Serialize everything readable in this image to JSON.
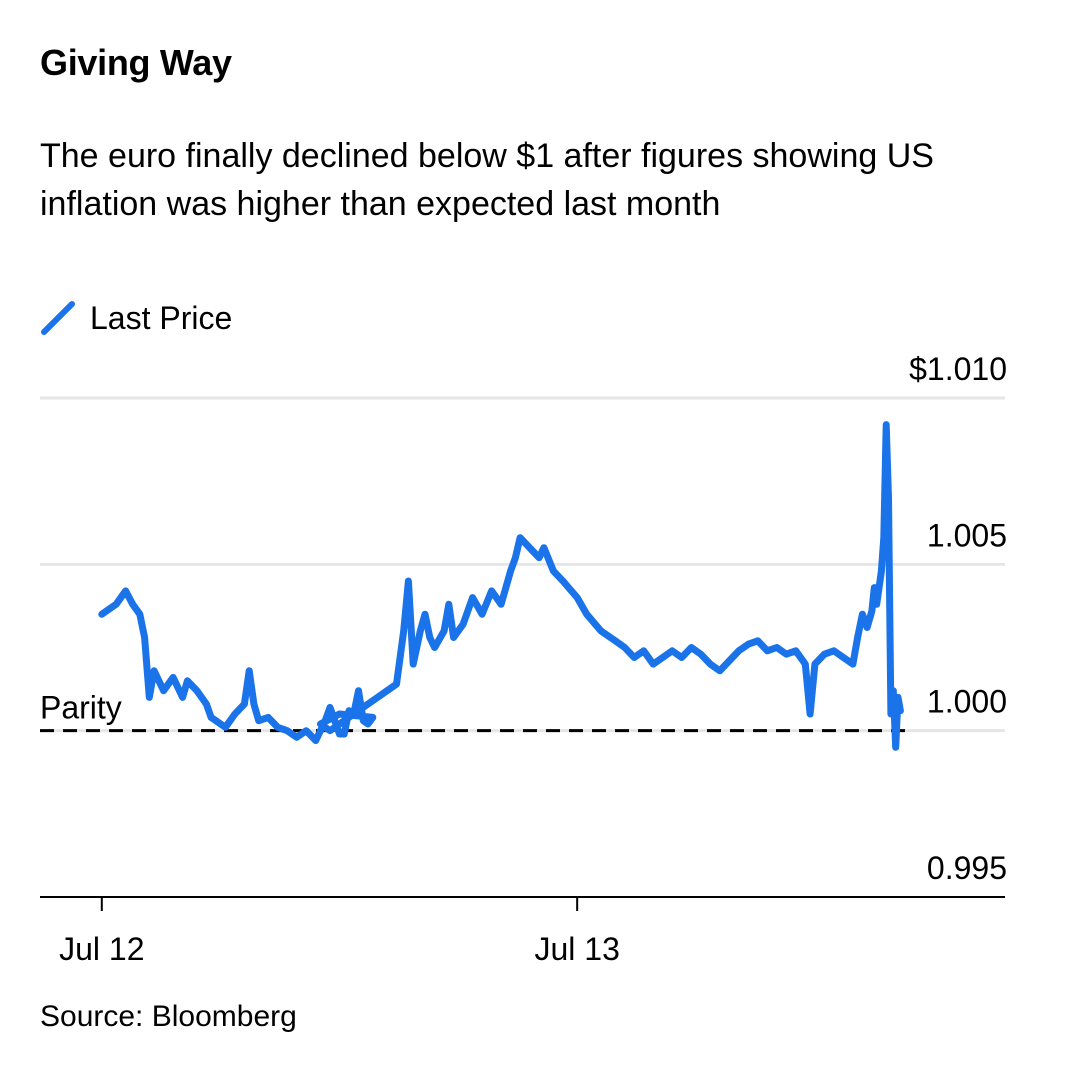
{
  "title": "Giving Way",
  "subtitle": "The euro finally declined below $1 after figures showing US inflation was higher than expected last month",
  "source": "Source: Bloomberg",
  "colors": {
    "series": "#1a73e8",
    "grid": "#e6e6e6",
    "axis": "#000000",
    "reference": "#000000"
  },
  "chart_data": {
    "type": "line",
    "title": "Giving Way",
    "xlabel": "",
    "ylabel": "",
    "legend": [
      "Last Price"
    ],
    "x_ticks": [
      {
        "label": "Jul 12",
        "t": 0.0
      },
      {
        "label": "Jul 13",
        "t": 1.0
      }
    ],
    "xlim": [
      -0.13,
      1.9
    ],
    "ylim": [
      0.995,
      1.01
    ],
    "y_ticks": [
      {
        "value": 1.01,
        "label": "$1.010"
      },
      {
        "value": 1.005,
        "label": "1.005"
      },
      {
        "value": 1.0,
        "label": "1.000"
      },
      {
        "value": 0.995,
        "label": "0.995"
      }
    ],
    "reference_line": {
      "value": 1.0,
      "label": "Parity",
      "style": "dashed"
    },
    "series": [
      {
        "name": "Last Price",
        "points": [
          [
            0.0,
            1.0035
          ],
          [
            0.03,
            1.0038
          ],
          [
            0.05,
            1.0042
          ],
          [
            0.065,
            1.0038
          ],
          [
            0.08,
            1.0035
          ],
          [
            0.09,
            1.0028
          ],
          [
            0.1,
            1.001
          ],
          [
            0.11,
            1.0018
          ],
          [
            0.13,
            1.0012
          ],
          [
            0.15,
            1.0016
          ],
          [
            0.17,
            1.001
          ],
          [
            0.18,
            1.0015
          ],
          [
            0.2,
            1.0012
          ],
          [
            0.22,
            1.0008
          ],
          [
            0.23,
            1.0004
          ],
          [
            0.25,
            1.0002
          ],
          [
            0.26,
            1.0001
          ],
          [
            0.28,
            1.0005
          ],
          [
            0.3,
            1.0008
          ],
          [
            0.31,
            1.0018
          ],
          [
            0.32,
            1.0008
          ],
          [
            0.33,
            1.0003
          ],
          [
            0.35,
            1.0004
          ],
          [
            0.37,
            1.0001
          ],
          [
            0.39,
            1.0
          ],
          [
            0.41,
            0.9998
          ],
          [
            0.43,
            1.0
          ],
          [
            0.45,
            0.9997
          ],
          [
            0.47,
            1.0003
          ],
          [
            0.48,
            1.0007
          ],
          [
            0.49,
            1.0003
          ],
          [
            0.5,
            0.9999
          ],
          [
            0.51,
            0.9999
          ],
          [
            0.52,
            1.0006
          ],
          [
            0.53,
            1.0005
          ],
          [
            0.54,
            1.0012
          ],
          [
            0.55,
            1.0003
          ],
          [
            0.56,
            1.0002
          ],
          [
            0.57,
            1.0004
          ],
          [
            0.5,
            1.0005
          ],
          [
            0.46,
            1.0002
          ],
          [
            0.48,
            1.0
          ],
          [
            0.5,
            1.0002
          ],
          [
            0.62,
            1.0014
          ],
          [
            0.635,
            1.003
          ],
          [
            0.645,
            1.0045
          ],
          [
            0.655,
            1.002
          ],
          [
            0.67,
            1.003
          ],
          [
            0.68,
            1.0035
          ],
          [
            0.69,
            1.0028
          ],
          [
            0.7,
            1.0025
          ],
          [
            0.72,
            1.003
          ],
          [
            0.73,
            1.0038
          ],
          [
            0.74,
            1.0028
          ],
          [
            0.76,
            1.0032
          ],
          [
            0.78,
            1.004
          ],
          [
            0.8,
            1.0035
          ],
          [
            0.82,
            1.0042
          ],
          [
            0.84,
            1.0038
          ],
          [
            0.86,
            1.0048
          ],
          [
            0.87,
            1.0052
          ],
          [
            0.88,
            1.0058
          ],
          [
            0.9,
            1.0055
          ],
          [
            0.92,
            1.0052
          ],
          [
            0.93,
            1.0055
          ],
          [
            0.95,
            1.0048
          ],
          [
            0.97,
            1.0045
          ],
          [
            1.0,
            1.004
          ],
          [
            1.02,
            1.0035
          ],
          [
            1.05,
            1.003
          ],
          [
            1.08,
            1.0027
          ],
          [
            1.1,
            1.0025
          ],
          [
            1.12,
            1.0022
          ],
          [
            1.14,
            1.0024
          ],
          [
            1.16,
            1.002
          ],
          [
            1.18,
            1.0022
          ],
          [
            1.2,
            1.0024
          ],
          [
            1.22,
            1.0022
          ],
          [
            1.24,
            1.0025
          ],
          [
            1.26,
            1.0023
          ],
          [
            1.28,
            1.002
          ],
          [
            1.3,
            1.0018
          ],
          [
            1.32,
            1.0021
          ],
          [
            1.34,
            1.0024
          ],
          [
            1.36,
            1.0026
          ],
          [
            1.38,
            1.0027
          ],
          [
            1.4,
            1.0024
          ],
          [
            1.42,
            1.0025
          ],
          [
            1.44,
            1.0023
          ],
          [
            1.46,
            1.0024
          ],
          [
            1.48,
            1.002
          ],
          [
            1.49,
            1.0005
          ],
          [
            1.5,
            1.002
          ],
          [
            1.52,
            1.0023
          ],
          [
            1.54,
            1.0024
          ],
          [
            1.56,
            1.0022
          ],
          [
            1.58,
            1.002
          ],
          [
            1.59,
            1.0028
          ],
          [
            1.6,
            1.0035
          ],
          [
            1.61,
            1.0031
          ],
          [
            1.62,
            1.0036
          ],
          [
            1.625,
            1.0043
          ],
          [
            1.63,
            1.0038
          ],
          [
            1.64,
            1.0048
          ],
          [
            1.645,
            1.0058
          ],
          [
            1.65,
            1.0092
          ],
          [
            1.655,
            1.007
          ],
          [
            1.66,
            1.0005
          ],
          [
            1.665,
            1.0012
          ],
          [
            1.67,
            0.9995
          ],
          [
            1.675,
            1.001
          ],
          [
            1.68,
            1.0006
          ]
        ]
      }
    ]
  }
}
